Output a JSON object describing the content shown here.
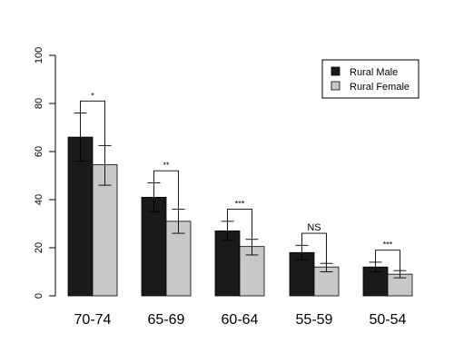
{
  "chart_data": {
    "type": "bar",
    "title": "",
    "xlabel": "",
    "ylabel": "",
    "ylim": [
      0,
      100
    ],
    "yticks": [
      0,
      20,
      40,
      60,
      80,
      100
    ],
    "categories": [
      "70-74",
      "65-69",
      "60-64",
      "55-59",
      "50-54"
    ],
    "series": [
      {
        "name": "Rural Male",
        "color": "#1a1a1a",
        "values": [
          66,
          41,
          27,
          18,
          12
        ],
        "error_low": [
          56,
          35,
          23,
          15,
          10
        ],
        "error_high": [
          76,
          47,
          31,
          21,
          14
        ]
      },
      {
        "name": "Rural Female",
        "color": "#c8c8c8",
        "values": [
          54.5,
          31,
          20.5,
          12,
          9
        ],
        "error_low": [
          46,
          26,
          17,
          10,
          7.5
        ],
        "error_high": [
          62.5,
          36,
          23.5,
          13.5,
          10.5
        ]
      }
    ],
    "significance": [
      {
        "label": "*",
        "bracket_top": 81
      },
      {
        "label": "**",
        "bracket_top": 52
      },
      {
        "label": "***",
        "bracket_top": 36
      },
      {
        "label": "NS",
        "bracket_top": 26
      },
      {
        "label": "***",
        "bracket_top": 19
      }
    ],
    "legend": {
      "position": "top-right",
      "entries": [
        "Rural Male",
        "Rural Female"
      ]
    },
    "grid": false
  }
}
